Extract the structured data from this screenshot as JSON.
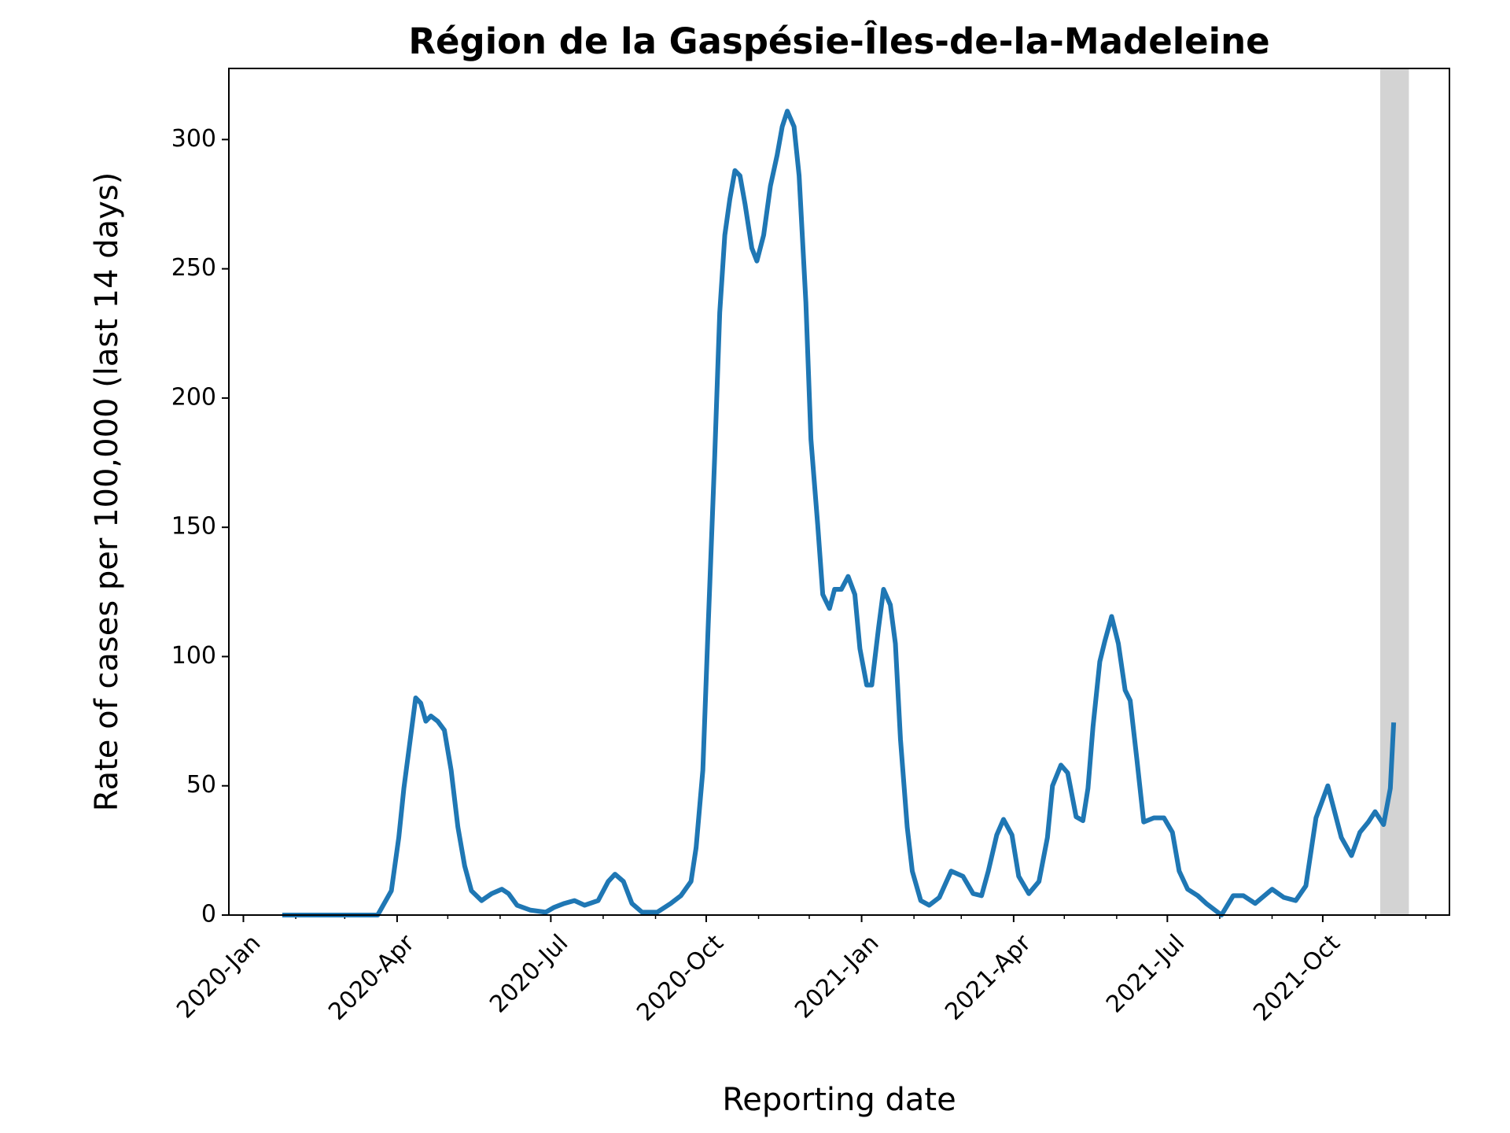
{
  "chart_data": {
    "type": "line",
    "title": "Région de la Gaspésie-Îles-de-la-Madeleine",
    "x_label": "Reporting date",
    "y_label": "Rate of cases per 100,000 (last 14 days)",
    "xlim": [
      -8.6,
      714
    ],
    "ylim": [
      0,
      327.5
    ],
    "xticks": [
      {
        "value": 0,
        "label": "2020-Jan"
      },
      {
        "value": 91,
        "label": "2020-Apr"
      },
      {
        "value": 182,
        "label": "2020-Jul"
      },
      {
        "value": 274,
        "label": "2020-Oct"
      },
      {
        "value": 366,
        "label": "2021-Jan"
      },
      {
        "value": 456,
        "label": "2021-Apr"
      },
      {
        "value": 547,
        "label": "2021-Jul"
      },
      {
        "value": 639,
        "label": "2021-Oct"
      }
    ],
    "xminorticks": [
      31,
      60,
      121,
      152,
      213,
      244,
      305,
      335,
      397,
      425,
      486,
      517,
      578,
      609,
      670,
      700
    ],
    "yticks": [
      0,
      50,
      100,
      150,
      200,
      250,
      300
    ],
    "shaded_span": [
      673,
      690
    ],
    "shaded_color": "#d3d3d3",
    "series": [
      {
        "color": "#1f77b4",
        "x": [
          23,
          79.5,
          87.6,
          92,
          95,
          98,
          102,
          105,
          108,
          111,
          115,
          119,
          123,
          127,
          131,
          135,
          141,
          147,
          153,
          157,
          162,
          170,
          179,
          184,
          190,
          196,
          202,
          210,
          216,
          220,
          225,
          230,
          236,
          245,
          253,
          259,
          265,
          268,
          272,
          275,
          279,
          282,
          285,
          288,
          291,
          294,
          297,
          301,
          304,
          308,
          312,
          316,
          319,
          322,
          326,
          329,
          333,
          336,
          340,
          343,
          347,
          350,
          354,
          358,
          362,
          365,
          369,
          372,
          376,
          379,
          383,
          386,
          389,
          393,
          396,
          401,
          406,
          412,
          419,
          426,
          432,
          437,
          441,
          446,
          450,
          455,
          459,
          465,
          471,
          476,
          479,
          484,
          488,
          493,
          497,
          500,
          503,
          507,
          510,
          514,
          518,
          522,
          525,
          529,
          533,
          539,
          545,
          550,
          554,
          559,
          565,
          570,
          579,
          586,
          592,
          599,
          609,
          616,
          623,
          629,
          635,
          642,
          650,
          656,
          661,
          666,
          670,
          675,
          679,
          681
        ],
        "values": [
          0,
          0,
          9.4,
          30,
          49,
          64,
          84,
          82,
          75,
          77,
          75,
          71.5,
          56,
          34,
          19,
          9.4,
          5.6,
          8.3,
          10,
          8.3,
          3.8,
          1.9,
          1.1,
          3,
          4.5,
          5.6,
          3.8,
          5.6,
          13,
          15.8,
          13,
          4.5,
          1.1,
          1.1,
          4.5,
          7.5,
          13,
          26,
          56,
          109,
          177,
          233,
          263,
          277,
          288,
          286,
          275,
          258,
          253,
          263,
          282,
          294,
          305,
          311,
          305,
          286,
          237,
          184,
          151,
          124,
          118.6,
          126,
          126,
          131,
          124,
          103,
          89,
          89,
          111,
          126,
          120,
          105,
          68,
          34,
          17,
          5.6,
          3.8,
          6.8,
          17,
          15,
          8.3,
          7.5,
          17,
          31,
          37,
          31,
          15,
          8.3,
          13,
          30,
          50,
          58,
          55,
          38,
          36.5,
          49,
          73,
          98,
          106,
          115.5,
          105,
          87,
          83,
          60,
          36,
          37.6,
          37.6,
          32,
          17,
          10,
          7.5,
          4.5,
          0,
          7.5,
          7.5,
          4.5,
          10,
          6.8,
          5.6,
          11.3,
          37.6,
          50,
          30,
          23,
          32,
          36,
          40,
          35,
          49,
          74.5
        ]
      }
    ]
  }
}
